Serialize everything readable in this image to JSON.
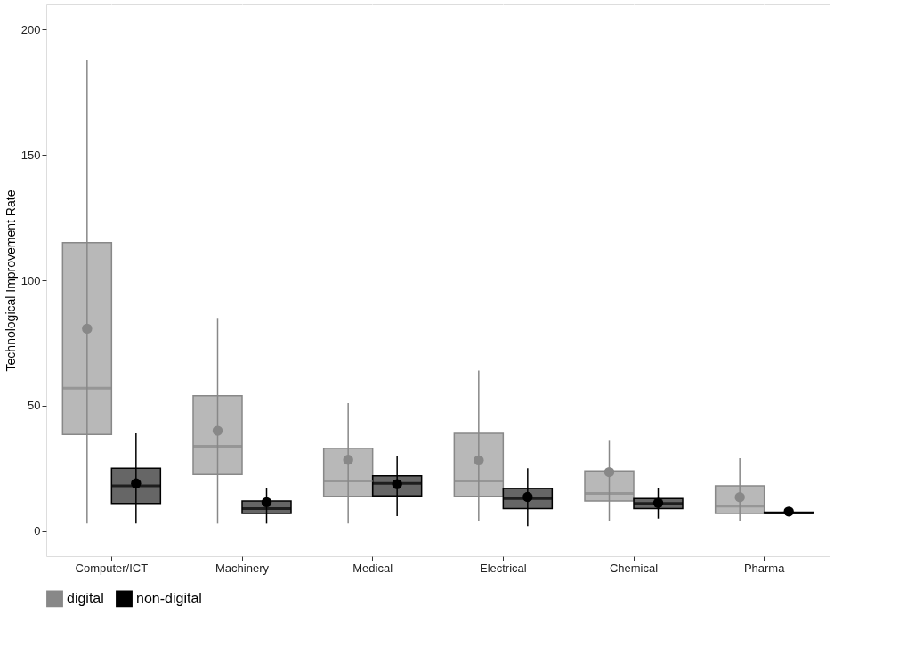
{
  "chart_data": {
    "type": "box",
    "ylabel": "Technological Improvement Rate",
    "categories": [
      "Computer/ICT",
      "Machinery",
      "Medical",
      "Electrical",
      "Chemical",
      "Pharma"
    ],
    "series": [
      {
        "name": "digital",
        "color": "#888888",
        "boxes": [
          {
            "low": 3,
            "q1": 38.5,
            "median": 57,
            "q3": 115,
            "high": 188,
            "mean": 80.7
          },
          {
            "low": 3,
            "q1": 22.6,
            "median": 33.8,
            "q3": 54,
            "high": 85,
            "mean": 40
          },
          {
            "low": 3,
            "q1": 13.9,
            "median": 20,
            "q3": 33,
            "high": 51,
            "mean": 28.4
          },
          {
            "low": 4,
            "q1": 13.9,
            "median": 20,
            "q3": 39,
            "high": 64,
            "mean": 28.2
          },
          {
            "low": 4,
            "q1": 12,
            "median": 15,
            "q3": 24,
            "high": 36,
            "mean": 23.5
          },
          {
            "low": 4,
            "q1": 7,
            "median": 10,
            "q3": 18,
            "high": 29,
            "mean": 13.5
          }
        ]
      },
      {
        "name": "non-digital",
        "color": "#000000",
        "boxes": [
          {
            "low": 3,
            "q1": 11,
            "median": 18,
            "q3": 25,
            "high": 39,
            "mean": 19
          },
          {
            "low": 3,
            "q1": 7,
            "median": 9,
            "q3": 12,
            "high": 17,
            "mean": 11.5
          },
          {
            "low": 6,
            "q1": 14,
            "median": 19,
            "q3": 22,
            "high": 30,
            "mean": 18.7
          },
          {
            "low": 2,
            "q1": 9,
            "median": 13,
            "q3": 17,
            "high": 25,
            "mean": 13.6
          },
          {
            "low": 5,
            "q1": 9,
            "median": 11,
            "q3": 13,
            "high": 17,
            "mean": 11.2
          },
          {
            "low": 6,
            "q1": 7,
            "median": 7.2,
            "q3": 7.6,
            "high": 8,
            "mean": 7.8
          }
        ]
      }
    ],
    "ylim": [
      -10,
      210
    ],
    "yticks": [
      0,
      50,
      100,
      150,
      200
    ],
    "grid": true,
    "legend": "bottom"
  }
}
